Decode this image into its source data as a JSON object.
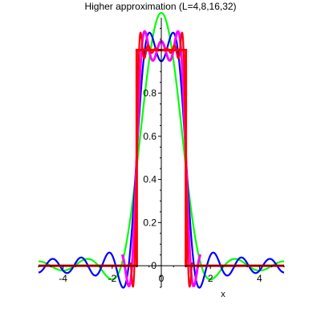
{
  "chart_data": {
    "type": "line",
    "title": "Higher approximation (L=4,8,16,32)",
    "xlabel": "x",
    "ylabel": "",
    "xlim": [
      -5,
      5
    ],
    "ylim": [
      -0.1,
      1.15
    ],
    "grid": false,
    "xticks": [
      -4,
      -2,
      0,
      2,
      4
    ],
    "xtick_labels": [
      "-4",
      "-2",
      "0",
      "2",
      "4"
    ],
    "yticks": [
      0,
      0.2,
      0.4,
      0.6,
      0.8
    ],
    "ytick_labels": [
      "0",
      "0.2",
      "0.4",
      "0.6",
      "0.8"
    ],
    "target": {
      "x": [
        -5,
        -1,
        -1,
        1,
        1,
        5
      ],
      "y": [
        0,
        0,
        1,
        1,
        0,
        0
      ]
    },
    "series": [
      {
        "L": 4,
        "color": "#00ff00",
        "x_range": [
          -5,
          5
        ]
      },
      {
        "L": 8,
        "color": "#0000ff",
        "x_range": [
          -5,
          5
        ]
      },
      {
        "L": 16,
        "color": "#ff00ff",
        "x_range": [
          -1.6,
          1.6
        ]
      },
      {
        "L": 32,
        "color": "#ff0000",
        "x_range": [
          -1.25,
          1.25
        ]
      }
    ],
    "period": 10
  }
}
